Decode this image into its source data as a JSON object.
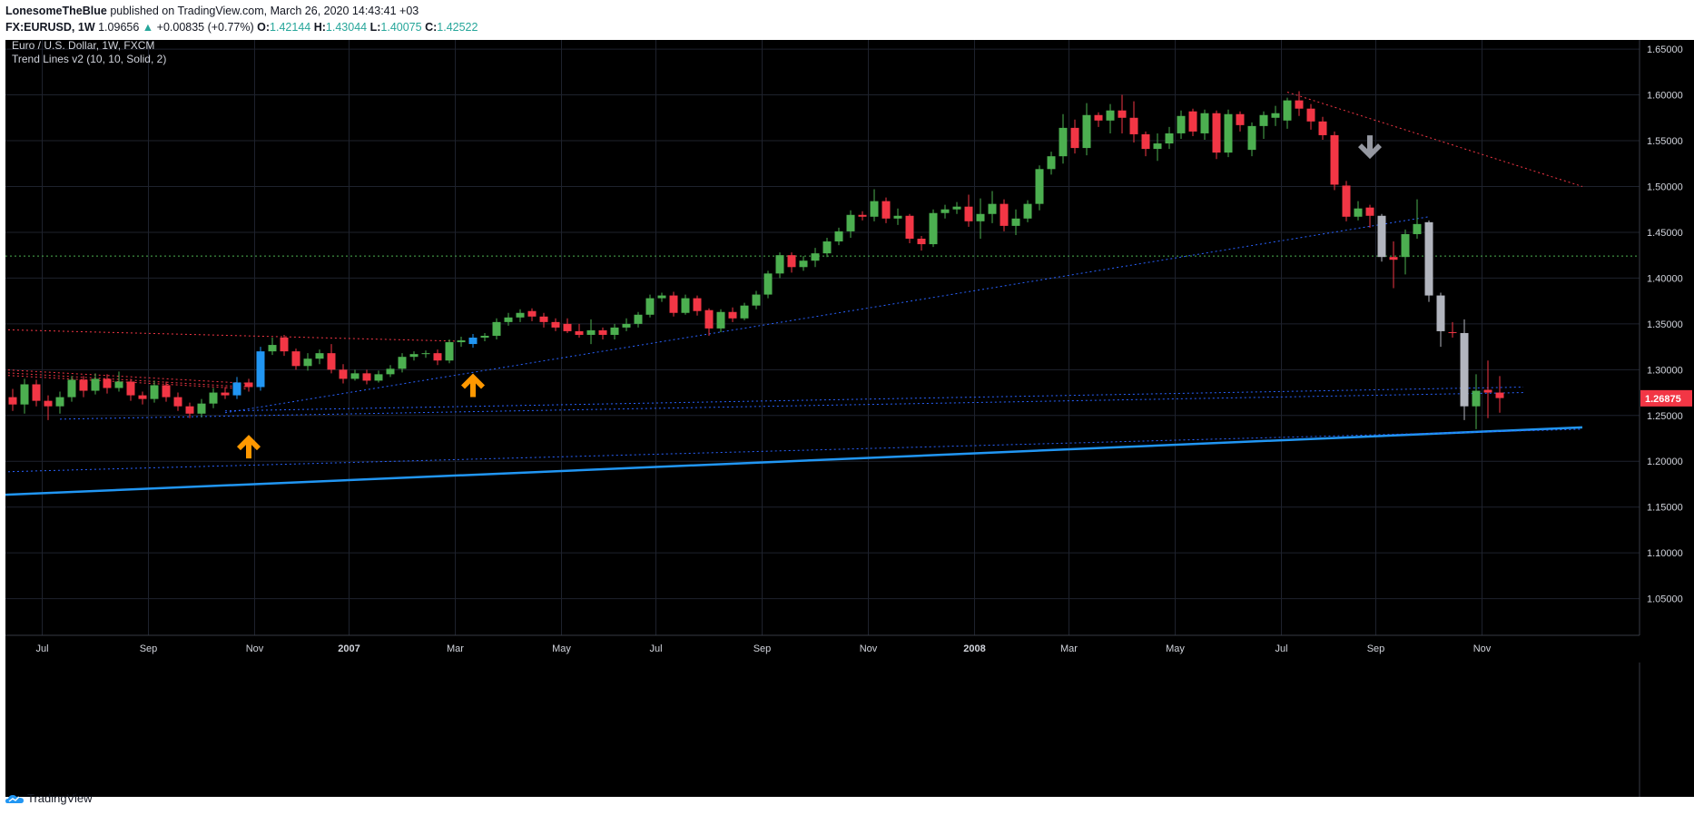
{
  "header": {
    "author": "LonesomeTheBlue",
    "published": "published on TradingView.com, March 26, 2020 14:43:41 +03",
    "symbol": "FX:EURUSD, 1W",
    "last_price": "1.09656",
    "change_arrow": "▲",
    "change": "+0.00835 (+0.77%)",
    "o_label": "O:",
    "o_value": "1.42144",
    "h_label": "H:",
    "h_value": "1.43044",
    "l_label": "L:",
    "l_value": "1.40075",
    "c_label": "C:",
    "c_value": "1.42522"
  },
  "legend": {
    "title": "Euro / U.S. Dollar, 1W, FXCM",
    "indicator": "Trend Lines v2 (10, 10, Solid, 2)"
  },
  "footer": {
    "brand": "TradingView",
    "logo_icon": "tradingview-logo-icon"
  },
  "chart_data": {
    "type": "candlestick",
    "ylim": [
      1.01,
      1.66
    ],
    "y_ticks": [
      1.05,
      1.1,
      1.15,
      1.2,
      1.25,
      1.3,
      1.35,
      1.4,
      1.45,
      1.5,
      1.55,
      1.6,
      1.65
    ],
    "y_tick_labels": [
      "1.05000",
      "1.10000",
      "1.15000",
      "1.20000",
      "1.25000",
      "1.30000",
      "1.35000",
      "1.40000",
      "1.45000",
      "1.50000",
      "1.55000",
      "1.60000",
      "1.65000"
    ],
    "x_labels": [
      {
        "label": "Jul",
        "i": 2.5,
        "bold": false
      },
      {
        "label": "Sep",
        "i": 11.5,
        "bold": false
      },
      {
        "label": "Nov",
        "i": 20.5,
        "bold": false
      },
      {
        "label": "2007",
        "i": 28.5,
        "bold": true
      },
      {
        "label": "Mar",
        "i": 37.5,
        "bold": false
      },
      {
        "label": "May",
        "i": 46.5,
        "bold": false
      },
      {
        "label": "Jul",
        "i": 54.5,
        "bold": false
      },
      {
        "label": "Sep",
        "i": 63.5,
        "bold": false
      },
      {
        "label": "Nov",
        "i": 72.5,
        "bold": false
      },
      {
        "label": "2008",
        "i": 81.5,
        "bold": true
      },
      {
        "label": "Mar",
        "i": 89.5,
        "bold": false
      },
      {
        "label": "May",
        "i": 98.5,
        "bold": false
      },
      {
        "label": "Jul",
        "i": 107.5,
        "bold": false
      },
      {
        "label": "Sep",
        "i": 115.5,
        "bold": false
      },
      {
        "label": "Nov",
        "i": 124.5,
        "bold": false
      }
    ],
    "last_price_label": "1.26875",
    "last_price": 1.26875,
    "horizontal_line": 1.424,
    "colors": {
      "up": "#4caf50",
      "down": "#f23645",
      "highlight_blue": "#2196f3",
      "highlight_gray": "#b2b5be",
      "background": "#000000",
      "grid": "#1e222d",
      "text": "#d1d4dc"
    },
    "candles": [
      [
        1.27,
        1.262,
        1.279,
        1.255
      ],
      [
        1.262,
        1.284,
        1.29,
        1.252
      ],
      [
        1.284,
        1.266,
        1.289,
        1.26
      ],
      [
        1.266,
        1.26,
        1.272,
        1.245
      ],
      [
        1.26,
        1.27,
        1.276,
        1.252
      ],
      [
        1.27,
        1.289,
        1.293,
        1.265
      ],
      [
        1.289,
        1.277,
        1.293,
        1.27
      ],
      [
        1.277,
        1.29,
        1.296,
        1.273
      ],
      [
        1.29,
        1.28,
        1.295,
        1.274
      ],
      [
        1.28,
        1.287,
        1.298,
        1.276
      ],
      [
        1.287,
        1.272,
        1.29,
        1.266
      ],
      [
        1.272,
        1.268,
        1.276,
        1.262
      ],
      [
        1.268,
        1.283,
        1.288,
        1.264
      ],
      [
        1.283,
        1.27,
        1.287,
        1.265
      ],
      [
        1.27,
        1.26,
        1.275,
        1.255
      ],
      [
        1.26,
        1.252,
        1.264,
        1.247
      ],
      [
        1.252,
        1.263,
        1.268,
        1.248
      ],
      [
        1.263,
        1.275,
        1.28,
        1.258
      ],
      [
        1.275,
        1.272,
        1.281,
        1.268
      ],
      [
        1.272,
        1.286,
        1.292,
        1.268,
        "blue"
      ],
      [
        1.286,
        1.281,
        1.29,
        1.276
      ],
      [
        1.281,
        1.32,
        1.325,
        1.277,
        "blue"
      ],
      [
        1.32,
        1.327,
        1.335,
        1.316
      ],
      [
        1.335,
        1.32,
        1.338,
        1.315
      ],
      [
        1.32,
        1.304,
        1.323,
        1.3
      ],
      [
        1.304,
        1.312,
        1.318,
        1.299
      ],
      [
        1.312,
        1.318,
        1.322,
        1.306
      ],
      [
        1.318,
        1.3,
        1.328,
        1.296
      ],
      [
        1.3,
        1.29,
        1.306,
        1.285
      ],
      [
        1.29,
        1.296,
        1.3,
        1.288
      ],
      [
        1.296,
        1.288,
        1.3,
        1.284
      ],
      [
        1.288,
        1.295,
        1.299,
        1.286
      ],
      [
        1.295,
        1.301,
        1.305,
        1.292
      ],
      [
        1.301,
        1.314,
        1.318,
        1.297
      ],
      [
        1.314,
        1.317,
        1.32,
        1.31
      ],
      [
        1.317,
        1.318,
        1.321,
        1.313
      ],
      [
        1.318,
        1.31,
        1.322,
        1.305
      ],
      [
        1.31,
        1.33,
        1.333,
        1.307
      ],
      [
        1.33,
        1.332,
        1.336,
        1.325
      ],
      [
        1.328,
        1.335,
        1.339,
        1.324,
        "blue"
      ],
      [
        1.335,
        1.337,
        1.34,
        1.331
      ],
      [
        1.337,
        1.352,
        1.356,
        1.333
      ],
      [
        1.352,
        1.357,
        1.362,
        1.348
      ],
      [
        1.357,
        1.362,
        1.366,
        1.352
      ],
      [
        1.364,
        1.358,
        1.367,
        1.353
      ],
      [
        1.358,
        1.352,
        1.362,
        1.346
      ],
      [
        1.352,
        1.346,
        1.356,
        1.342
      ],
      [
        1.35,
        1.342,
        1.356,
        1.34
      ],
      [
        1.342,
        1.338,
        1.35,
        1.335
      ],
      [
        1.338,
        1.343,
        1.355,
        1.328
      ],
      [
        1.343,
        1.338,
        1.346,
        1.333
      ],
      [
        1.338,
        1.346,
        1.35,
        1.333
      ],
      [
        1.346,
        1.35,
        1.356,
        1.342
      ],
      [
        1.35,
        1.36,
        1.363,
        1.346
      ],
      [
        1.36,
        1.378,
        1.382,
        1.357
      ],
      [
        1.378,
        1.381,
        1.384,
        1.374
      ],
      [
        1.381,
        1.362,
        1.385,
        1.358
      ],
      [
        1.362,
        1.378,
        1.382,
        1.36
      ],
      [
        1.378,
        1.364,
        1.381,
        1.359
      ],
      [
        1.365,
        1.345,
        1.367,
        1.337
      ],
      [
        1.345,
        1.363,
        1.366,
        1.341
      ],
      [
        1.363,
        1.356,
        1.368,
        1.352
      ],
      [
        1.356,
        1.37,
        1.373,
        1.354
      ],
      [
        1.37,
        1.382,
        1.386,
        1.366
      ],
      [
        1.382,
        1.405,
        1.408,
        1.378
      ],
      [
        1.405,
        1.425,
        1.428,
        1.4
      ],
      [
        1.425,
        1.412,
        1.428,
        1.406
      ],
      [
        1.412,
        1.419,
        1.424,
        1.408
      ],
      [
        1.419,
        1.427,
        1.433,
        1.412
      ],
      [
        1.427,
        1.44,
        1.444,
        1.423
      ],
      [
        1.44,
        1.451,
        1.455,
        1.436
      ],
      [
        1.451,
        1.469,
        1.474,
        1.444
      ],
      [
        1.469,
        1.467,
        1.473,
        1.463
      ],
      [
        1.467,
        1.484,
        1.497,
        1.462
      ],
      [
        1.484,
        1.465,
        1.488,
        1.46
      ],
      [
        1.465,
        1.468,
        1.476,
        1.458
      ],
      [
        1.468,
        1.443,
        1.47,
        1.438
      ],
      [
        1.443,
        1.437,
        1.446,
        1.43
      ],
      [
        1.437,
        1.471,
        1.475,
        1.434
      ],
      [
        1.471,
        1.475,
        1.48,
        1.465
      ],
      [
        1.475,
        1.478,
        1.483,
        1.47
      ],
      [
        1.478,
        1.462,
        1.491,
        1.456
      ],
      [
        1.462,
        1.47,
        1.487,
        1.443
      ],
      [
        1.47,
        1.481,
        1.495,
        1.46
      ],
      [
        1.481,
        1.457,
        1.486,
        1.451
      ],
      [
        1.457,
        1.465,
        1.475,
        1.447
      ],
      [
        1.465,
        1.481,
        1.485,
        1.461
      ],
      [
        1.481,
        1.519,
        1.523,
        1.474
      ],
      [
        1.519,
        1.533,
        1.538,
        1.513
      ],
      [
        1.533,
        1.564,
        1.579,
        1.525
      ],
      [
        1.564,
        1.542,
        1.573,
        1.536
      ],
      [
        1.542,
        1.578,
        1.591,
        1.534
      ],
      [
        1.578,
        1.572,
        1.581,
        1.565
      ],
      [
        1.572,
        1.583,
        1.59,
        1.558
      ],
      [
        1.583,
        1.575,
        1.6,
        1.558
      ],
      [
        1.575,
        1.557,
        1.593,
        1.548
      ],
      [
        1.557,
        1.541,
        1.56,
        1.533
      ],
      [
        1.541,
        1.547,
        1.558,
        1.528
      ],
      [
        1.547,
        1.558,
        1.565,
        1.541
      ],
      [
        1.558,
        1.577,
        1.583,
        1.552
      ],
      [
        1.582,
        1.56,
        1.585,
        1.555
      ],
      [
        1.558,
        1.58,
        1.584,
        1.551
      ],
      [
        1.58,
        1.537,
        1.583,
        1.53
      ],
      [
        1.537,
        1.579,
        1.584,
        1.532
      ],
      [
        1.579,
        1.567,
        1.582,
        1.56
      ],
      [
        1.54,
        1.566,
        1.57,
        1.533
      ],
      [
        1.566,
        1.578,
        1.582,
        1.552
      ],
      [
        1.575,
        1.58,
        1.588,
        1.566
      ],
      [
        1.572,
        1.594,
        1.597,
        1.563
      ],
      [
        1.594,
        1.585,
        1.604,
        1.577
      ],
      [
        1.585,
        1.571,
        1.59,
        1.562
      ],
      [
        1.571,
        1.556,
        1.576,
        1.551
      ],
      [
        1.556,
        1.502,
        1.56,
        1.496
      ],
      [
        1.501,
        1.467,
        1.506,
        1.462
      ],
      [
        1.467,
        1.476,
        1.484,
        1.463
      ],
      [
        1.477,
        1.468,
        1.48,
        1.455
      ],
      [
        1.468,
        1.423,
        1.47,
        1.418,
        "gray"
      ],
      [
        1.423,
        1.42,
        1.44,
        1.389
      ],
      [
        1.423,
        1.448,
        1.453,
        1.404
      ],
      [
        1.448,
        1.459,
        1.486,
        1.443
      ],
      [
        1.461,
        1.381,
        1.463,
        1.374,
        "gray"
      ],
      [
        1.381,
        1.342,
        1.384,
        1.325,
        "gray"
      ],
      [
        1.341,
        1.34,
        1.352,
        1.335
      ],
      [
        1.34,
        1.26,
        1.355,
        1.245,
        "gray"
      ],
      [
        1.26,
        1.277,
        1.295,
        1.235
      ],
      [
        1.278,
        1.275,
        1.31,
        1.247
      ],
      [
        1.275,
        1.269,
        1.293,
        1.253
      ]
    ],
    "trendlines": [
      {
        "kind": "support-main",
        "x1": -5,
        "y1": 1.161,
        "x2": 133,
        "y2": 1.237,
        "color": "#2196f3",
        "width": 2.5,
        "dash": ""
      },
      {
        "kind": "support-thin",
        "x1": -5,
        "y1": 1.187,
        "x2": 133,
        "y2": 1.235,
        "color": "#2962ff",
        "width": 1,
        "dash": "2,3"
      },
      {
        "kind": "support-thin",
        "x1": 4,
        "y1": 1.246,
        "x2": 128,
        "y2": 1.275,
        "color": "#2962ff",
        "width": 1,
        "dash": "2,3"
      },
      {
        "kind": "support-thin",
        "x1": 18,
        "y1": 1.255,
        "x2": 128,
        "y2": 1.281,
        "color": "#2962ff",
        "width": 1,
        "dash": "2,3"
      },
      {
        "kind": "support-thin",
        "x1": 18,
        "y1": 1.253,
        "x2": 120,
        "y2": 1.467,
        "color": "#2962ff",
        "width": 1,
        "dash": "2,3"
      },
      {
        "kind": "resistance",
        "x1": -5,
        "y1": 1.345,
        "x2": 38,
        "y2": 1.331,
        "color": "#f23645",
        "width": 1,
        "dash": "2,3"
      },
      {
        "kind": "resistance",
        "x1": -5,
        "y1": 1.3,
        "x2": 20,
        "y2": 1.281,
        "color": "#f23645",
        "width": 1,
        "dash": "2,3"
      },
      {
        "kind": "resistance",
        "x1": -5,
        "y1": 1.303,
        "x2": 20,
        "y2": 1.285,
        "color": "#f23645",
        "width": 1,
        "dash": "2,3"
      },
      {
        "kind": "resistance",
        "x1": -5,
        "y1": 1.297,
        "x2": 20,
        "y2": 1.279,
        "color": "#f23645",
        "width": 1,
        "dash": "2,3"
      },
      {
        "kind": "resistance",
        "x1": 108,
        "y1": 1.603,
        "x2": 133,
        "y2": 1.5,
        "color": "#f23645",
        "width": 1,
        "dash": "2,3"
      }
    ],
    "arrows": [
      {
        "dir": "up",
        "i": 20,
        "y": 1.218,
        "color": "#ff9800"
      },
      {
        "dir": "up",
        "i": 39,
        "y": 1.285,
        "color": "#ff9800"
      },
      {
        "dir": "down",
        "i": 115,
        "y": 1.541,
        "color": "#9598a1"
      }
    ]
  }
}
